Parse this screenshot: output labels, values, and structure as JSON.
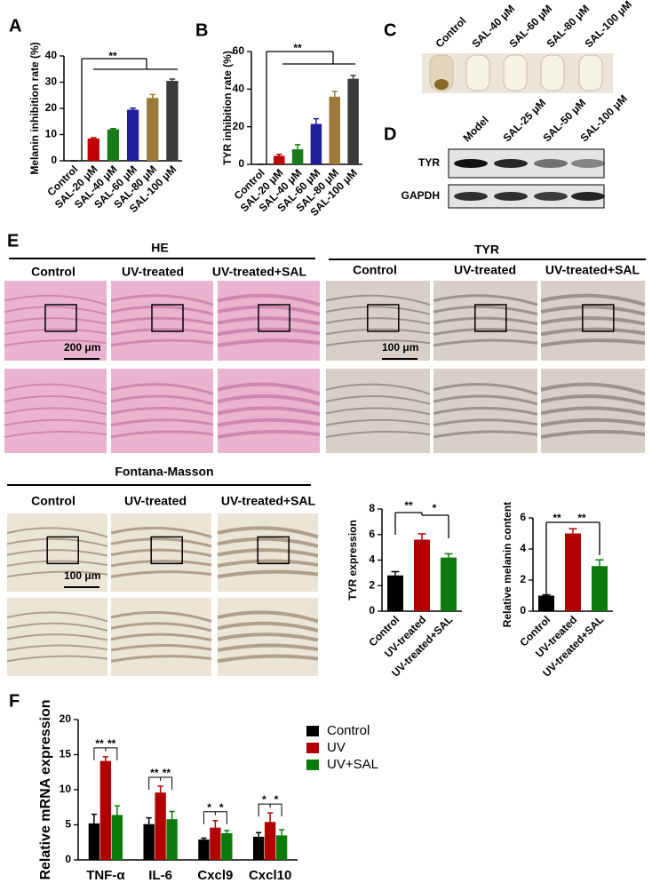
{
  "figure": {
    "panel_labels": [
      "A",
      "B",
      "C",
      "D",
      "E",
      "F"
    ],
    "panel_c": {
      "labels": [
        "Control",
        "SAL-40 μM",
        "SAL-60 μM",
        "SAL-80 μM",
        "SAL-100 μM"
      ]
    },
    "panel_d": {
      "lanes": [
        "Model",
        "SAL-25 μM",
        "SAL-50 μM",
        "SAL-100 μM"
      ],
      "rows": [
        "TYR",
        "GAPDH"
      ]
    },
    "panel_e": {
      "sections": [
        {
          "title": "HE",
          "columns": [
            "Control",
            "UV-treated",
            "UV-treated+SAL"
          ],
          "scale_bar": "200 μm"
        },
        {
          "title": "TYR",
          "columns": [
            "Control",
            "UV-treated",
            "UV-treated+SAL"
          ],
          "scale_bar": "100 μm"
        },
        {
          "title": "Fontana-Masson",
          "columns": [
            "Control",
            "UV-treated",
            "UV-treated+SAL"
          ],
          "scale_bar": "100 μm"
        }
      ]
    }
  },
  "chart_data": [
    {
      "type": "bar",
      "y_label": "Melanin inhibition rate (%)",
      "categories": [
        "Control",
        "SAL-20 μM",
        "SAL-40 μM",
        "SAL-60 μM",
        "SAL-80 μM",
        "SAL-100 μM"
      ],
      "values": [
        0,
        8.5,
        12,
        19.5,
        24,
        30.5
      ],
      "errors": [
        0,
        0.3,
        0.3,
        0.6,
        1.3,
        0.7
      ],
      "colors": [
        "#000000",
        "#c00000",
        "#1a7a1a",
        "#1f1f9e",
        "#9c7a3c",
        "#3a3a3a"
      ],
      "ylim": [
        0,
        40
      ],
      "yticks": [
        0,
        10,
        20,
        30,
        40
      ],
      "annotations": [
        "**"
      ]
    },
    {
      "type": "bar",
      "y_label": "TYR inhibition rate (%)",
      "categories": [
        "Control",
        "SAL-20 μM",
        "SAL-40 μM",
        "SAL-60 μM",
        "SAL-80 μM",
        "SAL-100 μM"
      ],
      "values": [
        0,
        4.5,
        8,
        21.5,
        36,
        45.5
      ],
      "errors": [
        0,
        0.8,
        2.5,
        2.8,
        2.8,
        1.8
      ],
      "colors": [
        "#000000",
        "#c00000",
        "#1a7a1a",
        "#1f1f9e",
        "#9c7a3c",
        "#3a3a3a"
      ],
      "ylim": [
        0,
        60
      ],
      "yticks": [
        0,
        20,
        40,
        60
      ],
      "annotations": [
        "**"
      ]
    },
    {
      "type": "bar",
      "y_label": "TYR expression",
      "categories": [
        "Control",
        "UV-treated",
        "UV-treated+SAL"
      ],
      "values": [
        2.8,
        5.6,
        4.2
      ],
      "errors": [
        0.3,
        0.45,
        0.3
      ],
      "colors": [
        "#000000",
        "#b00000",
        "#0a7a0a"
      ],
      "ylim": [
        0,
        8
      ],
      "yticks": [
        0,
        2,
        4,
        6,
        8
      ],
      "annotations": [
        "**",
        "*"
      ]
    },
    {
      "type": "bar",
      "y_label": "Relative melanin content",
      "categories": [
        "Control",
        "UV-treated",
        "UV-treated+SAL"
      ],
      "values": [
        1.0,
        5.0,
        2.9
      ],
      "errors": [
        0.05,
        0.3,
        0.4
      ],
      "colors": [
        "#000000",
        "#b00000",
        "#0a7a0a"
      ],
      "ylim": [
        0,
        6
      ],
      "yticks": [
        0,
        2,
        4,
        6
      ],
      "annotations": [
        "**",
        "**"
      ]
    },
    {
      "type": "grouped_bar",
      "y_label": "Relative mRNA expression",
      "categories": [
        "TNF-α",
        "IL-6",
        "Cxcl9",
        "Cxcl10"
      ],
      "series": [
        {
          "name": "Control",
          "color": "#000000",
          "values": [
            5.2,
            5.1,
            2.9,
            3.3
          ],
          "errors": [
            1.3,
            0.9,
            0.2,
            0.6
          ]
        },
        {
          "name": "UV",
          "color": "#b00000",
          "values": [
            14.1,
            9.6,
            4.6,
            5.4
          ],
          "errors": [
            0.6,
            0.9,
            1.0,
            1.3
          ]
        },
        {
          "name": "UV+SAL",
          "color": "#0a7a0a",
          "values": [
            6.4,
            5.8,
            3.8,
            3.5
          ],
          "errors": [
            1.3,
            1.1,
            0.4,
            0.8
          ]
        }
      ],
      "ylim": [
        0,
        20
      ],
      "yticks": [
        0,
        5,
        10,
        15,
        20
      ],
      "annotations": [
        "**",
        "**",
        "**",
        "**",
        "*",
        "*",
        "*",
        "*"
      ]
    }
  ]
}
